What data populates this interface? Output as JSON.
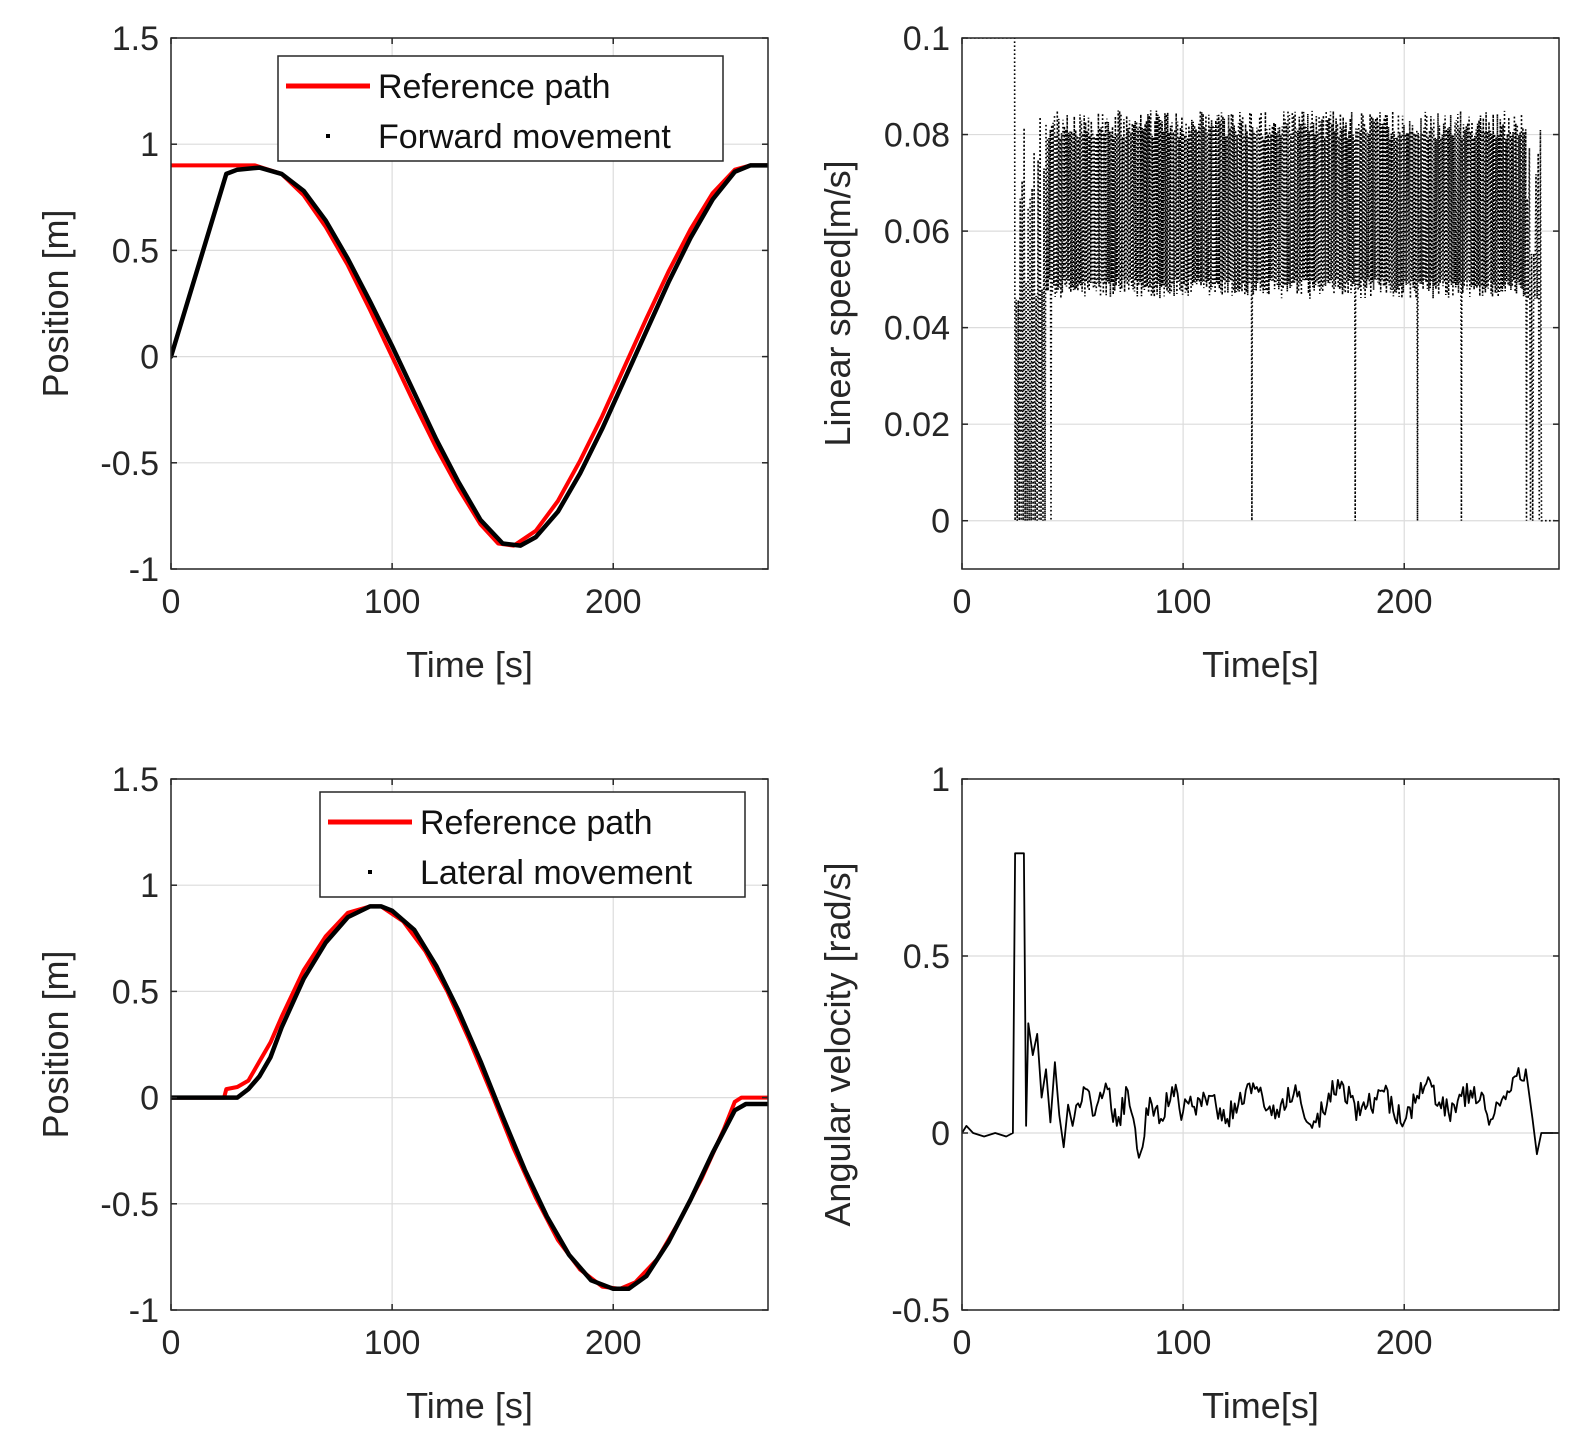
{
  "chart_data": [
    {
      "id": "forward",
      "type": "line",
      "xlabel": "Time [s]",
      "ylabel": "Position [m]",
      "xlim": [
        0,
        270
      ],
      "ylim": [
        -1,
        1.5
      ],
      "xticks": [
        0,
        100,
        200
      ],
      "yticks": [
        -1,
        -0.5,
        0,
        0.5,
        1,
        1.5
      ],
      "ytick_labels": [
        "-1",
        "-0.5",
        "0",
        "0.5",
        "1",
        "1.5"
      ],
      "grid": true,
      "legend_position": "top-right",
      "series": [
        {
          "name": "Reference path",
          "color": "#ff0000",
          "x": [
            0,
            25,
            38,
            50,
            60,
            70,
            80,
            90,
            100,
            110,
            120,
            130,
            140,
            148,
            155,
            165,
            175,
            185,
            195,
            205,
            215,
            225,
            235,
            245,
            255,
            262,
            270
          ],
          "y": [
            0.9,
            0.9,
            0.9,
            0.86,
            0.76,
            0.61,
            0.43,
            0.22,
            0.0,
            -0.22,
            -0.43,
            -0.62,
            -0.79,
            -0.88,
            -0.89,
            -0.82,
            -0.68,
            -0.49,
            -0.28,
            -0.05,
            0.18,
            0.4,
            0.6,
            0.77,
            0.88,
            0.9,
            0.9
          ]
        },
        {
          "name": "Forward movement",
          "color": "#000000",
          "x": [
            0,
            25,
            30,
            40,
            50,
            60,
            70,
            80,
            90,
            100,
            110,
            120,
            130,
            140,
            150,
            158,
            165,
            175,
            185,
            195,
            205,
            215,
            225,
            235,
            245,
            255,
            262,
            270
          ],
          "y": [
            0.0,
            0.86,
            0.88,
            0.89,
            0.86,
            0.78,
            0.64,
            0.46,
            0.26,
            0.05,
            -0.17,
            -0.39,
            -0.59,
            -0.77,
            -0.88,
            -0.89,
            -0.85,
            -0.73,
            -0.55,
            -0.34,
            -0.11,
            0.12,
            0.35,
            0.56,
            0.74,
            0.87,
            0.9,
            0.9
          ]
        }
      ]
    },
    {
      "id": "linear-speed",
      "type": "line",
      "xlabel": "Time[s]",
      "ylabel": "Linear speed[m/s]",
      "xlim": [
        0,
        270
      ],
      "ylim": [
        -0.01,
        0.1
      ],
      "xticks": [
        0,
        100,
        200
      ],
      "yticks": [
        0,
        0.02,
        0.04,
        0.06,
        0.08,
        0.1
      ],
      "ytick_labels": [
        "0",
        "0.02",
        "0.04",
        "0.06",
        "0.08",
        "0.1"
      ],
      "grid": true,
      "style": "dotted",
      "series": [
        {
          "name": "Linear speed",
          "color": "#000000",
          "t_start": 0,
          "t_end": 268,
          "initial_level": 0.1,
          "initial_until": 24,
          "oscillation_band": [
            0.046,
            0.085
          ],
          "band_start": 38,
          "band_end": 255,
          "zero_drop_times": [
            24,
            28,
            30,
            32,
            34,
            36,
            38,
            40,
            131,
            178,
            206,
            226,
            255,
            258,
            260
          ],
          "final_level": 0
        }
      ]
    },
    {
      "id": "lateral",
      "type": "line",
      "xlabel": "Time [s]",
      "ylabel": "Position [m]",
      "xlim": [
        0,
        270
      ],
      "ylim": [
        -1,
        1.5
      ],
      "xticks": [
        0,
        100,
        200
      ],
      "yticks": [
        -1,
        -0.5,
        0,
        0.5,
        1,
        1.5
      ],
      "ytick_labels": [
        "-1",
        "-0.5",
        "0",
        "0.5",
        "1",
        "1.5"
      ],
      "grid": true,
      "legend_position": "top-right",
      "series": [
        {
          "name": "Reference path",
          "color": "#ff0000",
          "x": [
            0,
            24,
            25,
            30,
            35,
            40,
            45,
            50,
            60,
            70,
            80,
            90,
            95,
            105,
            115,
            125,
            135,
            145,
            155,
            165,
            175,
            185,
            195,
            203,
            210,
            220,
            230,
            240,
            250,
            255,
            258,
            262,
            270
          ],
          "y": [
            0.0,
            0.0,
            0.04,
            0.05,
            0.08,
            0.17,
            0.26,
            0.38,
            0.6,
            0.76,
            0.87,
            0.9,
            0.9,
            0.83,
            0.69,
            0.5,
            0.27,
            0.02,
            -0.24,
            -0.47,
            -0.67,
            -0.81,
            -0.89,
            -0.9,
            -0.87,
            -0.76,
            -0.58,
            -0.38,
            -0.15,
            -0.02,
            0.0,
            0.0,
            0.0
          ]
        },
        {
          "name": "Lateral movement",
          "color": "#000000",
          "x": [
            0,
            30,
            35,
            40,
            45,
            50,
            60,
            70,
            80,
            90,
            95,
            100,
            110,
            120,
            130,
            140,
            150,
            160,
            170,
            180,
            190,
            200,
            207,
            215,
            225,
            235,
            245,
            255,
            260,
            270
          ],
          "y": [
            0.0,
            0.0,
            0.04,
            0.1,
            0.19,
            0.33,
            0.56,
            0.73,
            0.85,
            0.9,
            0.9,
            0.88,
            0.79,
            0.62,
            0.41,
            0.17,
            -0.09,
            -0.34,
            -0.56,
            -0.74,
            -0.86,
            -0.9,
            -0.9,
            -0.84,
            -0.68,
            -0.48,
            -0.26,
            -0.06,
            -0.03,
            -0.03
          ]
        }
      ]
    },
    {
      "id": "angular-velocity",
      "type": "line",
      "xlabel": "Time[s]",
      "ylabel": "Angular velocity [rad/s]",
      "xlim": [
        0,
        270
      ],
      "ylim": [
        -0.5,
        1
      ],
      "xticks": [
        0,
        100,
        200
      ],
      "yticks": [
        -0.5,
        0,
        0.5,
        1
      ],
      "ytick_labels": [
        "-0.5",
        "0",
        "0.5",
        "1"
      ],
      "grid": true,
      "series": [
        {
          "name": "Angular velocity",
          "color": "#000000",
          "x": [
            0,
            2,
            5,
            10,
            15,
            20,
            23,
            24,
            25,
            26,
            28,
            29,
            30,
            32,
            34,
            36,
            38,
            40,
            42,
            44,
            46,
            48,
            50,
            55,
            60,
            65,
            70,
            75,
            80,
            85,
            90,
            95,
            100,
            110,
            120,
            130,
            140,
            150,
            160,
            170,
            180,
            190,
            200,
            210,
            220,
            230,
            240,
            250,
            255,
            258,
            260,
            262,
            265,
            270
          ],
          "y": [
            0.0,
            0.02,
            0.0,
            -0.01,
            0.0,
            -0.01,
            0.0,
            0.79,
            0.79,
            0.79,
            0.79,
            0.02,
            0.31,
            0.22,
            0.28,
            0.1,
            0.18,
            0.03,
            0.2,
            0.05,
            -0.04,
            0.08,
            0.02,
            0.13,
            0.05,
            0.14,
            0.02,
            0.12,
            -0.07,
            0.1,
            0.04,
            0.13,
            0.06,
            0.1,
            0.04,
            0.14,
            0.05,
            0.11,
            0.03,
            0.15,
            0.05,
            0.12,
            0.03,
            0.14,
            0.06,
            0.12,
            0.04,
            0.16,
            0.18,
            0.04,
            -0.06,
            0.0,
            0.0,
            0.0
          ]
        }
      ]
    }
  ]
}
